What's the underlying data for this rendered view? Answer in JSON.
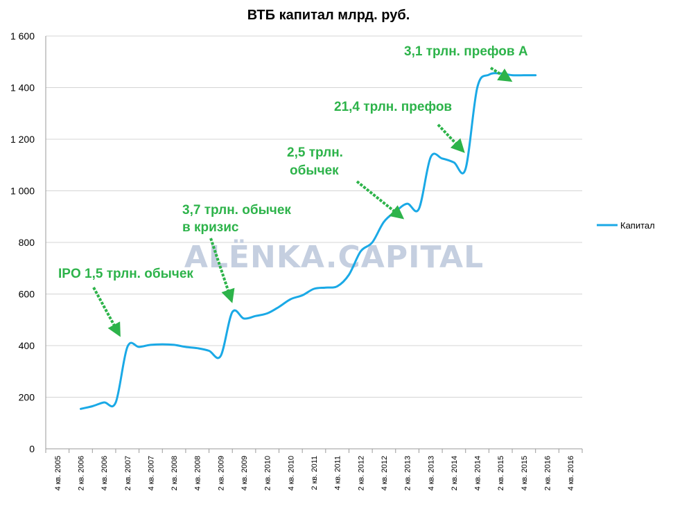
{
  "chart_data": {
    "type": "line",
    "title": "ВТБ капитал млрд. руб.",
    "xlabel": "",
    "ylabel": "",
    "ylim": [
      0,
      1600
    ],
    "yticks": [
      0,
      200,
      400,
      600,
      800,
      1000,
      1200,
      1400,
      1600
    ],
    "ytick_labels": [
      "0",
      "200",
      "400",
      "600",
      "800",
      "1 000",
      "1 200",
      "1 400",
      "1 600"
    ],
    "categories": [
      "4 кв. 2005",
      "2 кв. 2006",
      "4 кв. 2006",
      "2 кв. 2007",
      "4 кв. 2007",
      "2 кв. 2008",
      "4 кв. 2008",
      "2 кв. 2009",
      "4 кв. 2009",
      "2 кв. 2010",
      "4 кв. 2010",
      "2 кв. 2011",
      "4 кв. 2011",
      "2 кв. 2012",
      "4 кв. 2012",
      "2 кв. 2013",
      "4 кв. 2013",
      "2 кв. 2014",
      "4 кв. 2014",
      "2 кв. 2015",
      "4 кв. 2015",
      "2 кв. 2016",
      "4 кв. 2016"
    ],
    "series": [
      {
        "name": "Капитал",
        "color": "#1aa9e6",
        "x": [
          1,
          1.5,
          2,
          2.5,
          3,
          3.5,
          4,
          4.5,
          5,
          5.5,
          6,
          6.5,
          7,
          7.5,
          8,
          8.5,
          9,
          9.5,
          10,
          10.5,
          11,
          11.5,
          12,
          12.5,
          13,
          13.5,
          14,
          14.5,
          15,
          15.5,
          16,
          16.5,
          17,
          17.5,
          18,
          18.5,
          19,
          19.5,
          20,
          20.5
        ],
        "values": [
          155,
          165,
          180,
          180,
          395,
          395,
          403,
          405,
          403,
          395,
          390,
          380,
          360,
          530,
          505,
          515,
          525,
          550,
          580,
          595,
          620,
          625,
          630,
          675,
          765,
          800,
          880,
          920,
          950,
          930,
          1130,
          1125,
          1110,
          1085,
          1400,
          1450,
          1455,
          1448,
          1448,
          1448
        ]
      }
    ],
    "legend": {
      "position": "right",
      "entries": [
        "Капитал"
      ]
    },
    "annotations": [
      {
        "text": "IPO 1,5 трлн. обычек"
      },
      {
        "text": "3,7 трлн. обычек"
      },
      {
        "text": "в кризис"
      },
      {
        "text": "2,5 трлн."
      },
      {
        "text": "обычек"
      },
      {
        "text": "21,4 трлн. префов"
      },
      {
        "text": "3,1 трлн. префов А"
      }
    ],
    "watermark": "ALЁNKA.CAPITAL",
    "grid": true
  }
}
